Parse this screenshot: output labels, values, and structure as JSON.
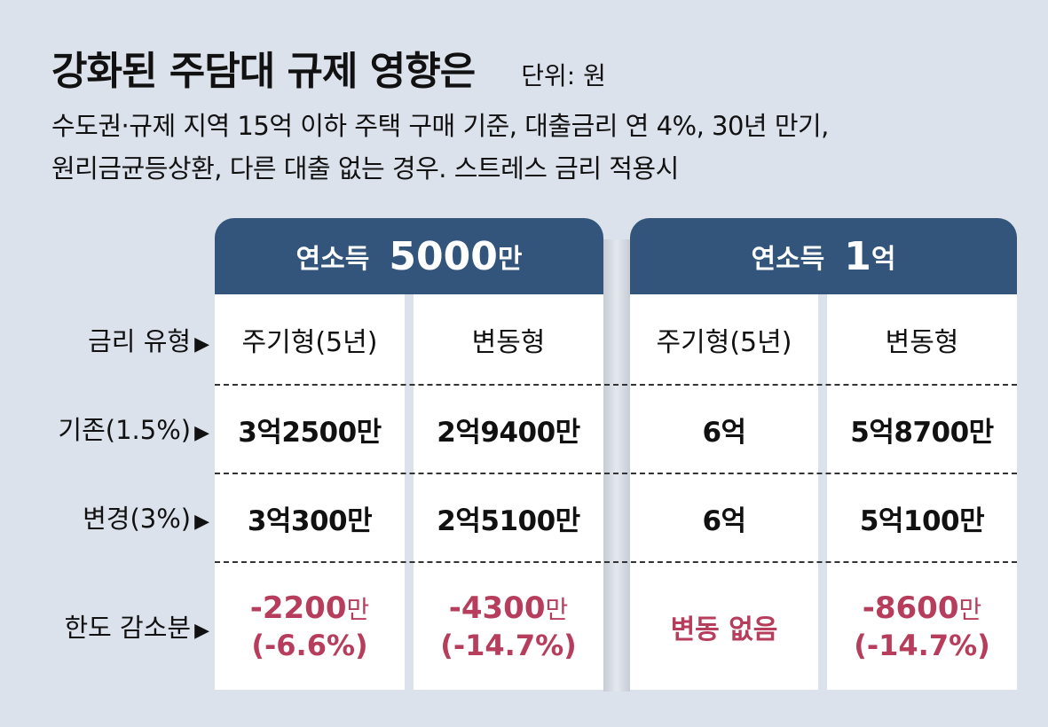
{
  "title": "강화된 주담대 규제 영향은",
  "unit": "단위: 원",
  "subtitle_line1": "수도권·규제 지역 15억 이하 주택 구매 기준, 대출금리 연 4%, 30년 만기,",
  "subtitle_line2": "원리금균등상환, 다른 대출 없는 경우. 스트레스 금리 적용시",
  "group1": {
    "label": "연소득",
    "amount": "5000",
    "suffix": "만"
  },
  "group2": {
    "label": "연소득",
    "amount": "1",
    "suffix": "억"
  },
  "row_labels": {
    "type": "금리 유형",
    "base": "기존(1.5%)",
    "changed": "변경(3%)",
    "reduction": "한도 감소분"
  },
  "arrow": "▶",
  "types": [
    "주기형(5년)",
    "변동형",
    "주기형(5년)",
    "변동형"
  ],
  "base_values": [
    "3억2500만",
    "2억9400만",
    "6억",
    "5억8700만"
  ],
  "changed_values": [
    "3억300만",
    "2억5100만",
    "6억",
    "5억100만"
  ],
  "reduction": {
    "c1": {
      "num": "-2200",
      "man": "만",
      "pct": "(-6.6%)"
    },
    "c2": {
      "num": "-4300",
      "man": "만",
      "pct": "(-14.7%)"
    },
    "c3": {
      "text": "변동 없음"
    },
    "c4": {
      "num": "-8600",
      "man": "만",
      "pct": "(-14.7%)"
    }
  },
  "colors": {
    "header": "#33557b",
    "accent": "#b63d5b",
    "background": "#dbe2ec"
  }
}
